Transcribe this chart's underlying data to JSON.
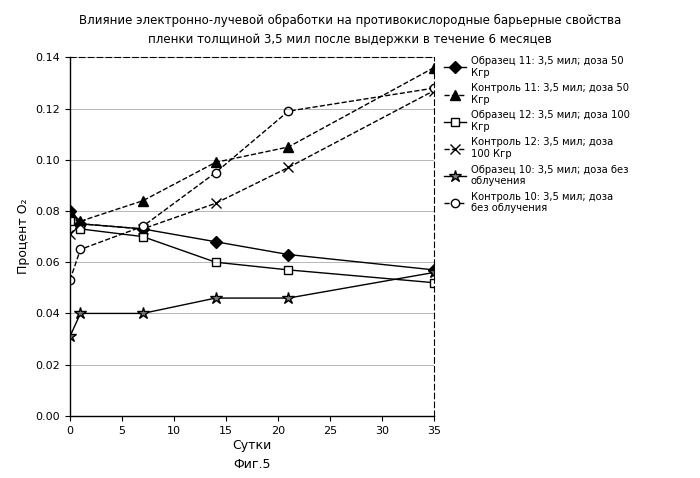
{
  "title_line1": "Влияние электронно-лучевой обработки на противокислородные барьерные свойства",
  "title_line2": "пленки толщиной 3,5 мил после выдержки в течение 6 месяцев",
  "xlabel": "Сутки",
  "ylabel": "Процент O₂",
  "fig5_label": "Фиг.5",
  "figsize": [
    7.0,
    4.78
  ],
  "dpi": 100,
  "xlim": [
    0,
    35
  ],
  "ylim": [
    0,
    0.14
  ],
  "xticks": [
    0,
    5,
    10,
    15,
    20,
    25,
    30,
    35
  ],
  "yticks": [
    0,
    0.02,
    0.04,
    0.06,
    0.08,
    0.1,
    0.12,
    0.14
  ],
  "series": [
    {
      "label": "Образец 11: 3,5 мил; доза 50\nКгр",
      "x": [
        0,
        1,
        7,
        14,
        21,
        35
      ],
      "y": [
        0.08,
        0.075,
        0.073,
        0.068,
        0.063,
        0.057
      ],
      "color": "black",
      "linestyle": "-",
      "marker": "D",
      "markerfacecolor": "black",
      "markeredgecolor": "black",
      "markersize": 6
    },
    {
      "label": "Контроль 11: 3,5 мил; доза 50\nКгр",
      "x": [
        0,
        1,
        7,
        14,
        21,
        35
      ],
      "y": [
        0.08,
        0.076,
        0.084,
        0.099,
        0.105,
        0.136
      ],
      "color": "black",
      "linestyle": "--",
      "marker": "^",
      "markerfacecolor": "black",
      "markeredgecolor": "black",
      "markersize": 7
    },
    {
      "label": "Образец 12: 3,5 мил; доза 100\nКгр",
      "x": [
        0,
        1,
        7,
        14,
        21,
        35
      ],
      "y": [
        0.076,
        0.073,
        0.07,
        0.06,
        0.057,
        0.052
      ],
      "color": "black",
      "linestyle": "-",
      "marker": "s",
      "markerfacecolor": "white",
      "markeredgecolor": "black",
      "markersize": 6
    },
    {
      "label": "Контроль 12: 3,5 мил; доза\n100 Кгр",
      "x": [
        0,
        1,
        7,
        14,
        21,
        35
      ],
      "y": [
        0.071,
        0.075,
        0.073,
        0.083,
        0.097,
        0.127
      ],
      "color": "black",
      "linestyle": "--",
      "marker": "x",
      "markerfacecolor": "black",
      "markeredgecolor": "black",
      "markersize": 7
    },
    {
      "label": "Образец 10: 3,5 мил; доза без\nоблучения",
      "x": [
        0,
        1,
        7,
        14,
        21,
        35
      ],
      "y": [
        0.031,
        0.04,
        0.04,
        0.046,
        0.046,
        0.056
      ],
      "color": "black",
      "linestyle": "-",
      "marker": "*",
      "markerfacecolor": "gray",
      "markeredgecolor": "black",
      "markersize": 9
    },
    {
      "label": "Контроль 10: 3,5 мил; доза\nбез облучения",
      "x": [
        0,
        1,
        7,
        14,
        21,
        35
      ],
      "y": [
        0.053,
        0.065,
        0.074,
        0.095,
        0.119,
        0.128
      ],
      "color": "black",
      "linestyle": "--",
      "marker": "o",
      "markerfacecolor": "white",
      "markeredgecolor": "black",
      "markersize": 6
    }
  ],
  "background_color": "#ffffff"
}
